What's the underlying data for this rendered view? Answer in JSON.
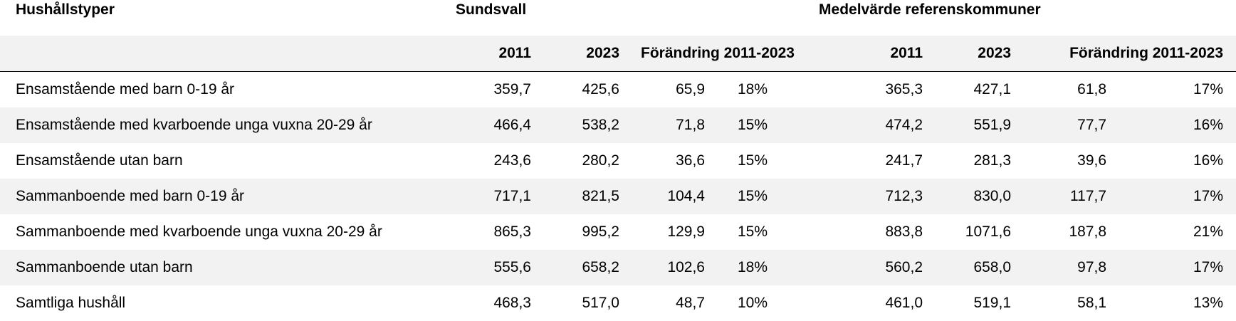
{
  "header": {
    "row_header_title": "Hushållstyper",
    "group_1": "Sundsvall",
    "group_2": "Medelvärde referenskommuner"
  },
  "columns": {
    "s_2011": "2011",
    "s_2023": "2023",
    "s_change": "Förändring 2011-2023",
    "r_2011": "2011",
    "r_2023": "2023",
    "r_change": "Förändring 2011-2023"
  },
  "rows": [
    {
      "label": "Ensamstående med barn 0-19 år",
      "s2011": "359,7",
      "s2023": "425,6",
      "sdiff": "65,9",
      "spct": "18%",
      "r2011": "365,3",
      "r2023": "427,1",
      "rdiff": "61,8",
      "rpct": "17%"
    },
    {
      "label": "Ensamstående med kvarboende unga vuxna 20-29 år",
      "s2011": "466,4",
      "s2023": "538,2",
      "sdiff": "71,8",
      "spct": "15%",
      "r2011": "474,2",
      "r2023": "551,9",
      "rdiff": "77,7",
      "rpct": "16%"
    },
    {
      "label": "Ensamstående utan barn",
      "s2011": "243,6",
      "s2023": "280,2",
      "sdiff": "36,6",
      "spct": "15%",
      "r2011": "241,7",
      "r2023": "281,3",
      "rdiff": "39,6",
      "rpct": "16%"
    },
    {
      "label": "Sammanboende med barn 0-19 år",
      "s2011": "717,1",
      "s2023": "821,5",
      "sdiff": "104,4",
      "spct": "15%",
      "r2011": "712,3",
      "r2023": "830,0",
      "rdiff": "117,7",
      "rpct": "17%"
    },
    {
      "label": "Sammanboende med kvarboende unga vuxna 20-29 år",
      "s2011": "865,3",
      "s2023": "995,2",
      "sdiff": "129,9",
      "spct": "15%",
      "r2011": "883,8",
      "r2023": "1071,6",
      "rdiff": "187,8",
      "rpct": "21%"
    },
    {
      "label": "Sammanboende utan barn",
      "s2011": "555,6",
      "s2023": "658,2",
      "sdiff": "102,6",
      "spct": "18%",
      "r2011": "560,2",
      "r2023": "658,0",
      "rdiff": "97,8",
      "rpct": "17%"
    },
    {
      "label": "Samtliga hushåll",
      "s2011": "468,3",
      "s2023": "517,0",
      "sdiff": "48,7",
      "spct": "10%",
      "r2011": "461,0",
      "r2023": "519,1",
      "rdiff": "58,1",
      "rpct": "13%"
    }
  ]
}
